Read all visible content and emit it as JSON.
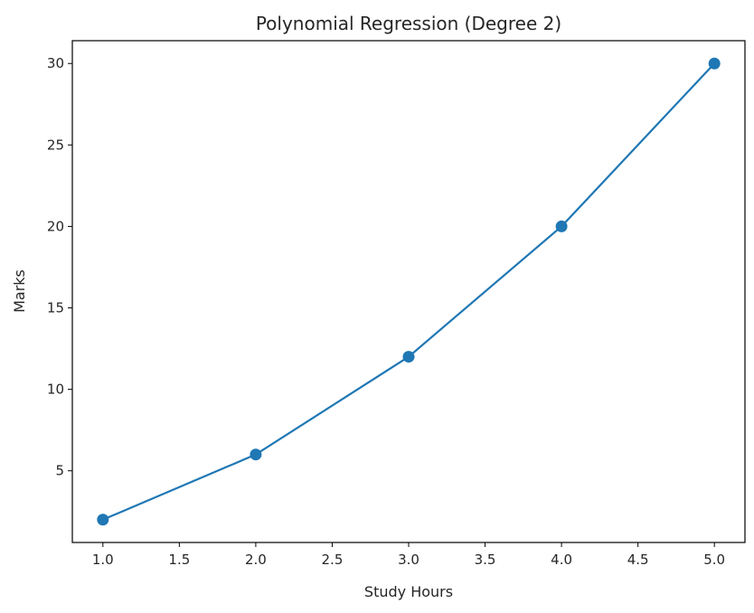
{
  "chart_data": {
    "type": "line",
    "title": "Polynomial Regression (Degree 2)",
    "xlabel": "Study Hours",
    "ylabel": "Marks",
    "x": [
      1,
      2,
      3,
      4,
      5
    ],
    "series": [
      {
        "values": [
          2,
          6,
          12,
          20,
          30
        ],
        "color": "#1f77b4",
        "marker": "circle"
      }
    ],
    "xlim": [
      0.8,
      5.2
    ],
    "ylim": [
      0.6,
      31.4
    ],
    "xticks": [
      "1.0",
      "1.5",
      "2.0",
      "2.5",
      "3.0",
      "3.5",
      "4.0",
      "4.5",
      "5.0"
    ],
    "yticks": [
      "5",
      "10",
      "15",
      "20",
      "25",
      "30"
    ],
    "grid": false,
    "legend": "none"
  }
}
